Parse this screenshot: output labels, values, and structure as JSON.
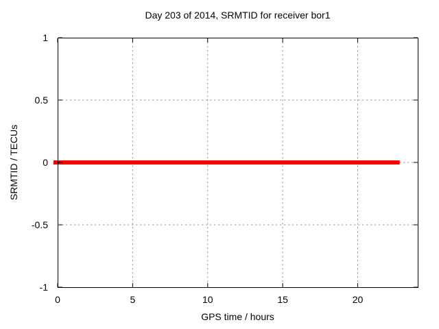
{
  "chart_data": {
    "type": "line",
    "title": "Day 203 of 2014, SRMTID for receiver bor1",
    "xlabel": "GPS time / hours",
    "ylabel": "SRMTID / TECUs",
    "xlim": [
      0,
      24
    ],
    "ylim": [
      -1,
      1
    ],
    "xticks": [
      {
        "value": 0,
        "label": "0"
      },
      {
        "value": 5,
        "label": "5"
      },
      {
        "value": 10,
        "label": "10"
      },
      {
        "value": 15,
        "label": "15"
      },
      {
        "value": 20,
        "label": "20"
      }
    ],
    "yticks": [
      {
        "value": 1,
        "label": "1"
      },
      {
        "value": 0.5,
        "label": "0.5"
      },
      {
        "value": 0,
        "label": "0"
      },
      {
        "value": -0.5,
        "label": "-0.5"
      },
      {
        "value": -1,
        "label": "-1"
      }
    ],
    "grid": true,
    "legend_position": "none",
    "colors": {
      "series_line": "#ff0000",
      "grid_line": "#9a9a9a",
      "border": "#000000",
      "text": "#000000",
      "background": "#ffffff"
    },
    "series": [
      {
        "name": "SRMTID",
        "color": "#ff0000",
        "line_width": 6,
        "x": [
          0,
          22.8
        ],
        "y": [
          0,
          0
        ],
        "description": "constant zero value from hour 0 to hour 22.8"
      }
    ]
  }
}
